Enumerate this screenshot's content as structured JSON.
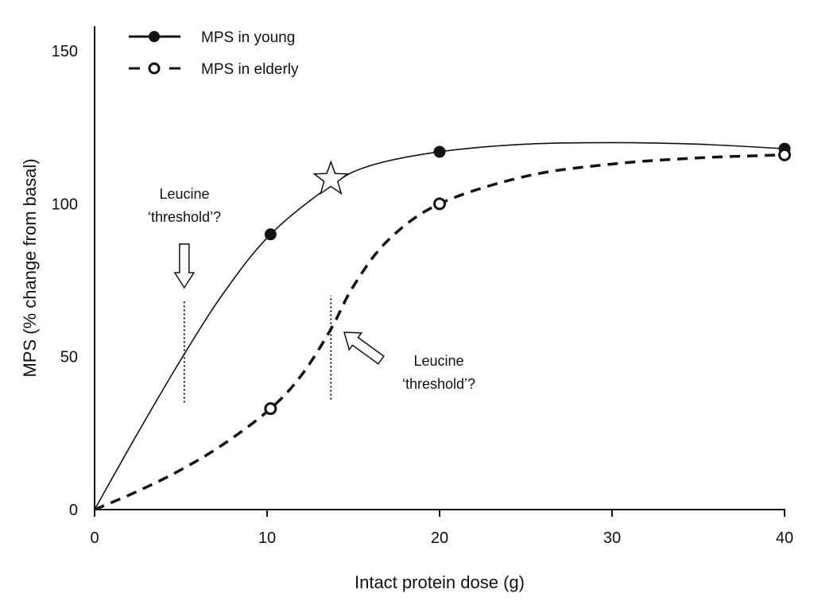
{
  "chart_data": {
    "type": "line",
    "title": "",
    "xlabel": "Intact protein dose (g)",
    "ylabel": "MPS (% change from basal)",
    "xlim": [
      0,
      40
    ],
    "ylim": [
      0,
      150
    ],
    "xticks": [
      "0",
      "10",
      "20",
      "30",
      "40"
    ],
    "yticks": [
      "0",
      "50",
      "100",
      "150"
    ],
    "grid": false,
    "legend_position": "top-left",
    "series": [
      {
        "name": "MPS in young",
        "marker": "filled-circle",
        "line": "solid",
        "points": [
          [
            0,
            0
          ],
          [
            10.2,
            90
          ],
          [
            20,
            117
          ],
          [
            40,
            118
          ]
        ],
        "curve": [
          [
            0,
            0
          ],
          [
            2.5,
            25
          ],
          [
            5,
            49
          ],
          [
            7.5,
            71
          ],
          [
            10.2,
            90
          ],
          [
            13.7,
            106
          ],
          [
            16,
            112.5
          ],
          [
            20,
            117
          ],
          [
            25,
            119.5
          ],
          [
            30,
            120
          ],
          [
            35,
            119.5
          ],
          [
            40,
            118
          ]
        ]
      },
      {
        "name": "MPS in elderly",
        "marker": "open-circle",
        "line": "dashed",
        "points": [
          [
            0,
            0
          ],
          [
            10.2,
            33
          ],
          [
            20,
            100
          ],
          [
            40,
            116
          ]
        ],
        "curve": [
          [
            0,
            0
          ],
          [
            2.5,
            6
          ],
          [
            5,
            13
          ],
          [
            7.5,
            21.5
          ],
          [
            10.2,
            33
          ],
          [
            12,
            44
          ],
          [
            13.7,
            59
          ],
          [
            15,
            73
          ],
          [
            17,
            88
          ],
          [
            20,
            100
          ],
          [
            25,
            109
          ],
          [
            30,
            113
          ],
          [
            35,
            115
          ],
          [
            40,
            116
          ]
        ]
      }
    ],
    "annotations": [
      {
        "text_line1": "Leucine",
        "text_line2": "‘threshold’?",
        "x": 5.2,
        "y_range": [
          35,
          68
        ],
        "arrow": "down"
      },
      {
        "text_line1": "Leucine",
        "text_line2": "‘threshold’?",
        "x": 13.7,
        "y_range": [
          36,
          70
        ],
        "arrow": "diagonal"
      }
    ],
    "star": {
      "x": 13.7,
      "y": 108
    }
  }
}
